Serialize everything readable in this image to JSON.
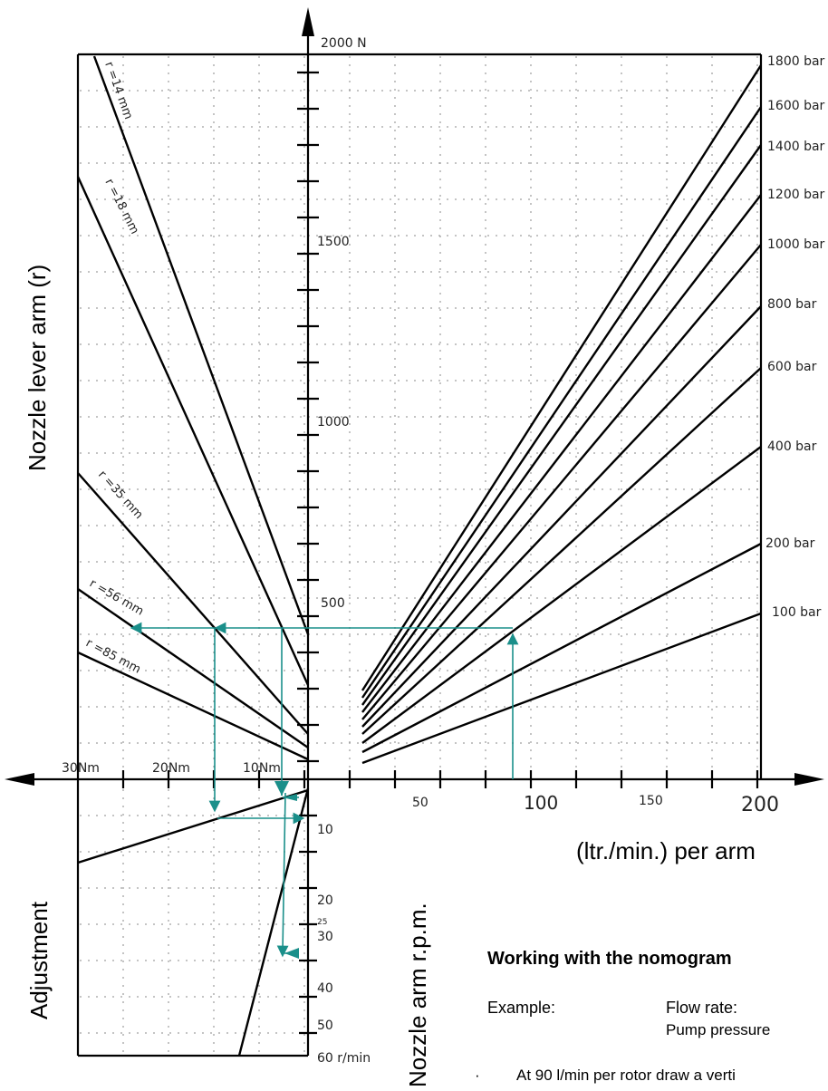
{
  "axis": {
    "force_top": "2000 N",
    "force_1500": "1500",
    "force_1000": "1000",
    "force_500": "500",
    "torque_30": "30Nm",
    "torque_20": "20Nm",
    "torque_10": "10Nm",
    "flow_50": "50",
    "flow_100": "100",
    "flow_150": "150",
    "flow_200": "200",
    "rpm_10": "10",
    "rpm_20": "20",
    "rpm_25": "25",
    "rpm_30": "30",
    "rpm_40": "40",
    "rpm_50": "50",
    "rpm_60": "60 r/min"
  },
  "pressure_labels": {
    "p1800": "1800 bar",
    "p1600": "1600 bar",
    "p1400": "1400 bar",
    "p1200": "1200 bar",
    "p1000": "1000 bar",
    "p800": "800 bar",
    "p600": "600 bar",
    "p400": "400 bar",
    "p200": "200 bar",
    "p100": "100 bar"
  },
  "lever_labels": {
    "r14": "r =14 mm",
    "r18": "r =18 mm",
    "r35": "r =35 mm",
    "r56": "r =56 mm",
    "r85": "r =85 mm"
  },
  "titles": {
    "left": "Nozzle lever arm (r)",
    "flow": "(ltr./min.) per arm",
    "adjustment": "Adjustment",
    "rpm": "Nozzle arm r.p.m."
  },
  "text": {
    "heading": "Working with the nomogram",
    "example": "Example:",
    "flow_rate": "Flow rate:",
    "pump_pressure": "Pump pressure",
    "bullet": "·",
    "instruction": "At 90 l/min per rotor draw a verti"
  },
  "colors": {
    "line": "#000000",
    "grid": "#8a8a8a",
    "example": "#1a8f8a"
  }
}
